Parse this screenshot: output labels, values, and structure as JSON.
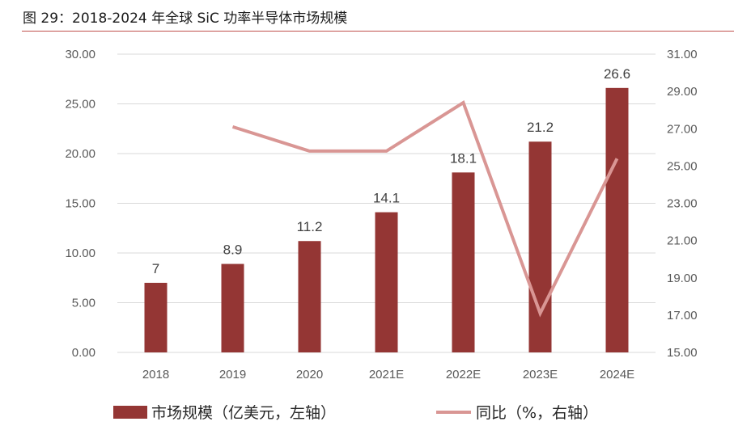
{
  "title": "图 29：2018-2024 年全球 SiC 功率半导体市场规模",
  "colors": {
    "bar": "#943634",
    "line": "#d99694",
    "grid": "#d9d9d9",
    "accent": "#c0504d"
  },
  "chart_data": {
    "type": "bar",
    "categories": [
      "2018",
      "2019",
      "2020",
      "2021E",
      "2022E",
      "2023E",
      "2024E"
    ],
    "series": [
      {
        "name": "市场规模（亿美元，左轴）",
        "type": "bar",
        "axis": "left",
        "values": [
          7,
          8.9,
          11.2,
          14.1,
          18.1,
          21.2,
          26.6
        ],
        "labels": [
          "7",
          "8.9",
          "11.2",
          "14.1",
          "18.1",
          "21.2",
          "26.6"
        ]
      },
      {
        "name": "同比（%，右轴）",
        "type": "line",
        "axis": "right",
        "values": [
          null,
          27.1,
          25.8,
          25.8,
          28.4,
          17.1,
          25.4
        ]
      }
    ],
    "y_left": {
      "min": 0,
      "max": 30,
      "ticks": [
        "0.00",
        "5.00",
        "10.00",
        "15.00",
        "20.00",
        "25.00",
        "30.00"
      ]
    },
    "y_right": {
      "min": 15,
      "max": 31,
      "ticks": [
        "15.00",
        "17.00",
        "19.00",
        "21.00",
        "23.00",
        "25.00",
        "27.00",
        "29.00",
        "31.00"
      ]
    },
    "grid": true,
    "legend_position": "bottom"
  }
}
